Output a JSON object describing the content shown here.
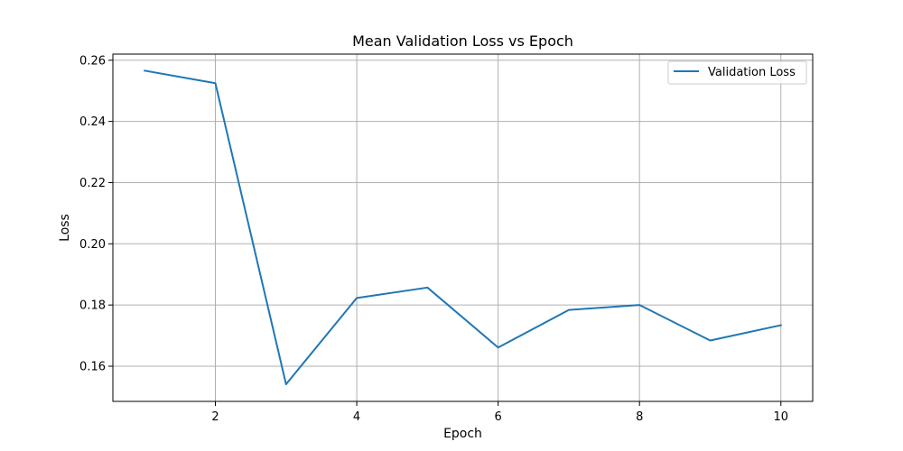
{
  "chart_data": {
    "type": "line",
    "title": "Mean Validation Loss vs Epoch",
    "xlabel": "Epoch",
    "ylabel": "Loss",
    "xlim": [
      0.55,
      10.45
    ],
    "ylim": [
      0.1485,
      0.262
    ],
    "x_ticks": [
      2,
      4,
      6,
      8,
      10
    ],
    "y_ticks": [
      0.16,
      0.18,
      0.2,
      0.22,
      0.24,
      0.26
    ],
    "x_tick_labels": [
      "2",
      "4",
      "6",
      "8",
      "10"
    ],
    "y_tick_labels": [
      "0.16",
      "0.18",
      "0.20",
      "0.22",
      "0.24",
      "0.26"
    ],
    "grid": true,
    "legend_position": "top-right",
    "series": [
      {
        "name": "Validation Loss",
        "color": "#1f77b4",
        "x": [
          1,
          2,
          3,
          4,
          5,
          6,
          7,
          8,
          9,
          10
        ],
        "y": [
          0.2566,
          0.2525,
          0.1541,
          0.1823,
          0.1857,
          0.1661,
          0.1784,
          0.18,
          0.1684,
          0.1734
        ]
      }
    ]
  }
}
